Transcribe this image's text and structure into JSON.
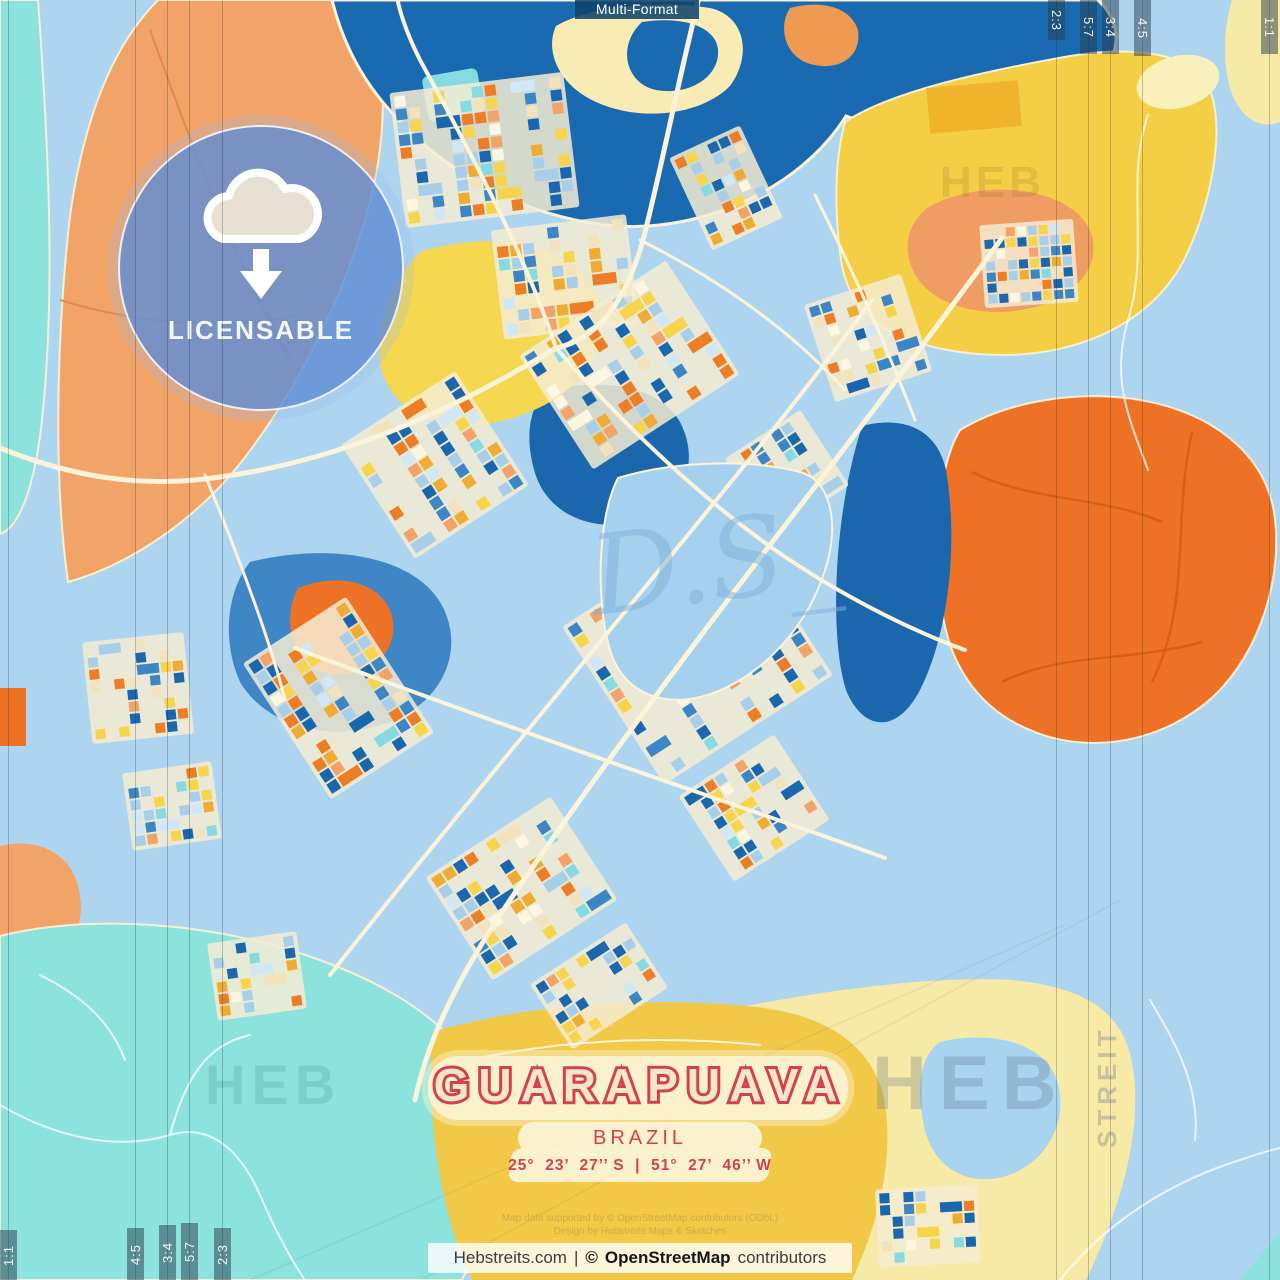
{
  "top_bar": {
    "label": "Multi-Format"
  },
  "badge": {
    "label": "LICENSABLE",
    "icon": "cloud-download-icon"
  },
  "title_block": {
    "city": "GUARAPUAVA",
    "country": "BRAZIL",
    "coordinates": "25°  23’  27’’ S  |  51°  27’  46’’ W"
  },
  "attribution": {
    "line1": "Map data supported by © OpenStreetMap contributors (ODbL)",
    "line2": "Design by Hebstreits Maps & Sketches"
  },
  "footer": {
    "site": "Hebstreits.com",
    "separator": "|",
    "copyright_symbol": "©",
    "osm": "OpenStreetMap",
    "suffix": "contributors"
  },
  "crop_guides": {
    "top_right": [
      "2:3",
      "5:7",
      "3:4",
      "4:5"
    ],
    "top_right_corner": "1:1",
    "bottom_left": [
      "4:5",
      "3:4",
      "5:7",
      "2:3"
    ],
    "bottom_left_corner": "1:1"
  },
  "watermarks": {
    "bottom_left": "HEB",
    "bottom_right": "HEB",
    "bottom_right_vertical": "STREIT",
    "top_right": "HEB",
    "center_signature": "D.S_"
  },
  "colors": {
    "water_dark": "#1a6ab1",
    "base_blue": "#aed5f0",
    "turquoise": "#8ce2dc",
    "salmon": "#f2a468",
    "orange": "#ee7226",
    "gold": "#f4cf45",
    "pale_yellow": "#f7e9a6",
    "cream_panel": "#f9f1d0",
    "road_cream": "#fbf3da",
    "title_red": "#d3414e",
    "badge_blue": "#628fd4"
  },
  "map_palette": [
    {
      "c": "#1a67ad",
      "w": 0.17
    },
    {
      "c": "#3c86c6",
      "w": 0.1
    },
    {
      "c": "#a8cfea",
      "w": 0.13
    },
    {
      "c": "#cfe7f7",
      "w": 0.05
    },
    {
      "c": "#f3e3bd",
      "w": 0.07
    },
    {
      "c": "#f6d44c",
      "w": 0.14
    },
    {
      "c": "#f0ab32",
      "w": 0.08
    },
    {
      "c": "#ee7e25",
      "w": 0.13
    },
    {
      "c": "#f2a468",
      "w": 0.04
    },
    {
      "c": "#86dbe2",
      "w": 0.05
    },
    {
      "c": "#fdf6e3",
      "w": 0.04
    }
  ]
}
